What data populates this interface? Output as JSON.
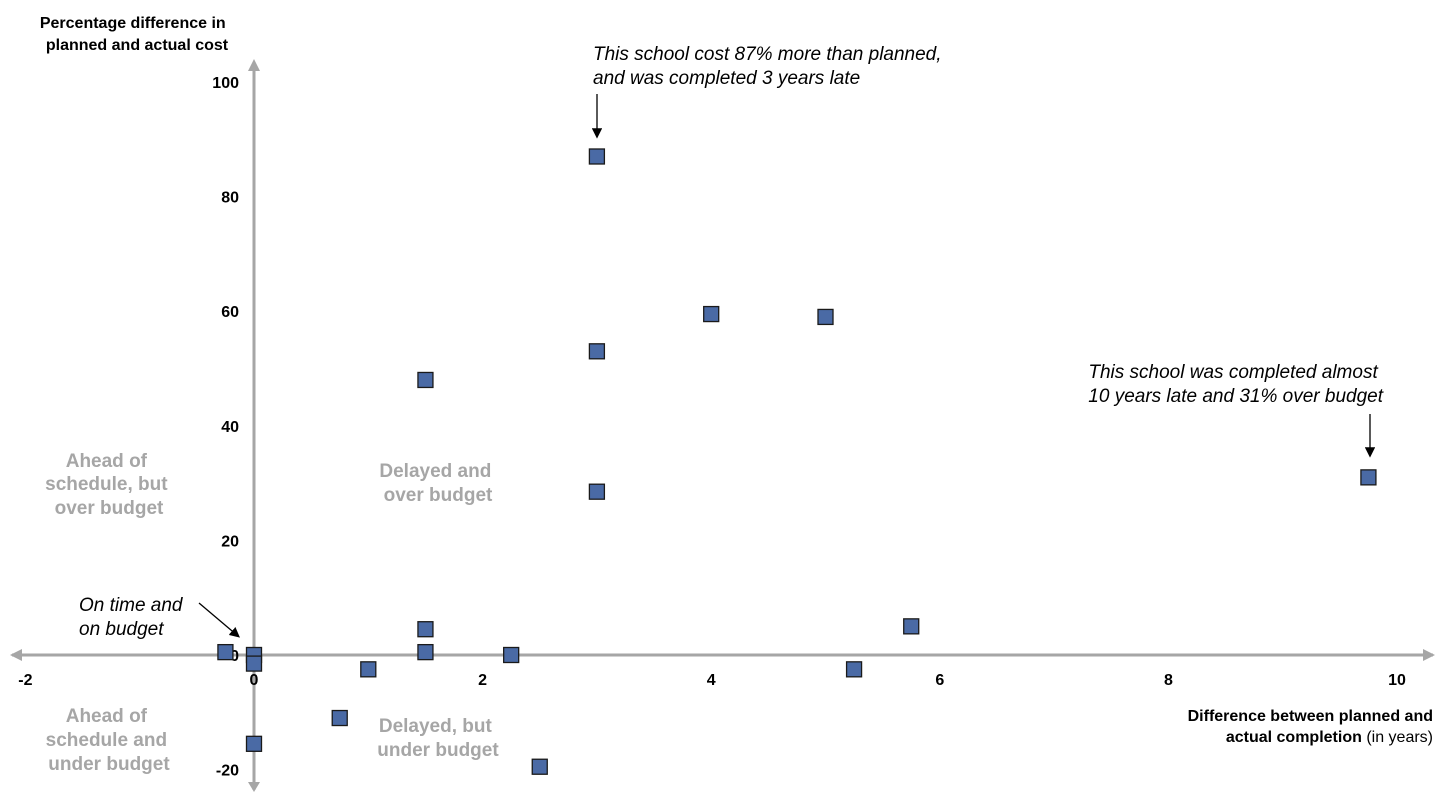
{
  "chart_data": {
    "type": "scatter",
    "y_axis_label": [
      "Percentage difference in",
      "planned and actual cost"
    ],
    "x_axis_label": {
      "line1": "Difference between planned and",
      "line2_bold": "actual completion",
      "line2_regular": " (in years)"
    },
    "xlim": [
      -2,
      10
    ],
    "ylim": [
      -20,
      100
    ],
    "x_ticks": [
      {
        "value": -2,
        "label": "-2"
      },
      {
        "value": 0,
        "label": "0"
      },
      {
        "value": 2,
        "label": "2"
      },
      {
        "value": 4,
        "label": "4"
      },
      {
        "value": 6,
        "label": "6"
      },
      {
        "value": 8,
        "label": "8"
      },
      {
        "value": 10,
        "label": "10"
      }
    ],
    "y_ticks": [
      {
        "value": -20,
        "label": "-20"
      },
      {
        "value": 0,
        "label": "0"
      },
      {
        "value": 20,
        "label": "20"
      },
      {
        "value": 40,
        "label": "40"
      },
      {
        "value": 60,
        "label": "60"
      },
      {
        "value": 80,
        "label": "80"
      },
      {
        "value": 100,
        "label": "100"
      }
    ],
    "points": [
      {
        "x": 3.0,
        "y": 87
      },
      {
        "x": 4.0,
        "y": 59.5
      },
      {
        "x": 5.0,
        "y": 59
      },
      {
        "x": 3.0,
        "y": 53
      },
      {
        "x": 1.5,
        "y": 48
      },
      {
        "x": 9.75,
        "y": 31
      },
      {
        "x": 3.0,
        "y": 28.5
      },
      {
        "x": 5.75,
        "y": 5
      },
      {
        "x": 1.5,
        "y": 4.5
      },
      {
        "x": 1.5,
        "y": 0.5
      },
      {
        "x": -0.25,
        "y": 0.5
      },
      {
        "x": 0.0,
        "y": 0
      },
      {
        "x": 0.0,
        "y": -1.5
      },
      {
        "x": 2.25,
        "y": 0
      },
      {
        "x": 1.0,
        "y": -2.5
      },
      {
        "x": 5.25,
        "y": -2.5
      },
      {
        "x": 0.75,
        "y": -11
      },
      {
        "x": 0.0,
        "y": -15.5
      },
      {
        "x": 2.5,
        "y": -19.5
      }
    ],
    "quadrant_labels": {
      "top_left": [
        "Ahead of",
        "schedule, but",
        "over budget"
      ],
      "top_right": [
        "Delayed and",
        "over budget"
      ],
      "bottom_left": [
        "Ahead of",
        "schedule and",
        "under budget"
      ],
      "bottom_right": [
        "Delayed, but",
        "under budget"
      ]
    },
    "annotations": [
      {
        "text": [
          "This school cost 87% more than planned,",
          "and was completed 3 years late"
        ],
        "x": 3.0,
        "y": 87
      },
      {
        "text": [
          "This school was completed almost",
          "10 years late and 31% over budget"
        ],
        "x": 9.75,
        "y": 31
      },
      {
        "text": [
          "On time and",
          "on budget"
        ],
        "x": 0,
        "y": 0
      }
    ],
    "colors": {
      "marker_fill": "#4a6aa5",
      "marker_stroke": "#1a1a1a",
      "axis": "#a6a6a6",
      "quadrant_text": "#a6a6a6"
    }
  }
}
